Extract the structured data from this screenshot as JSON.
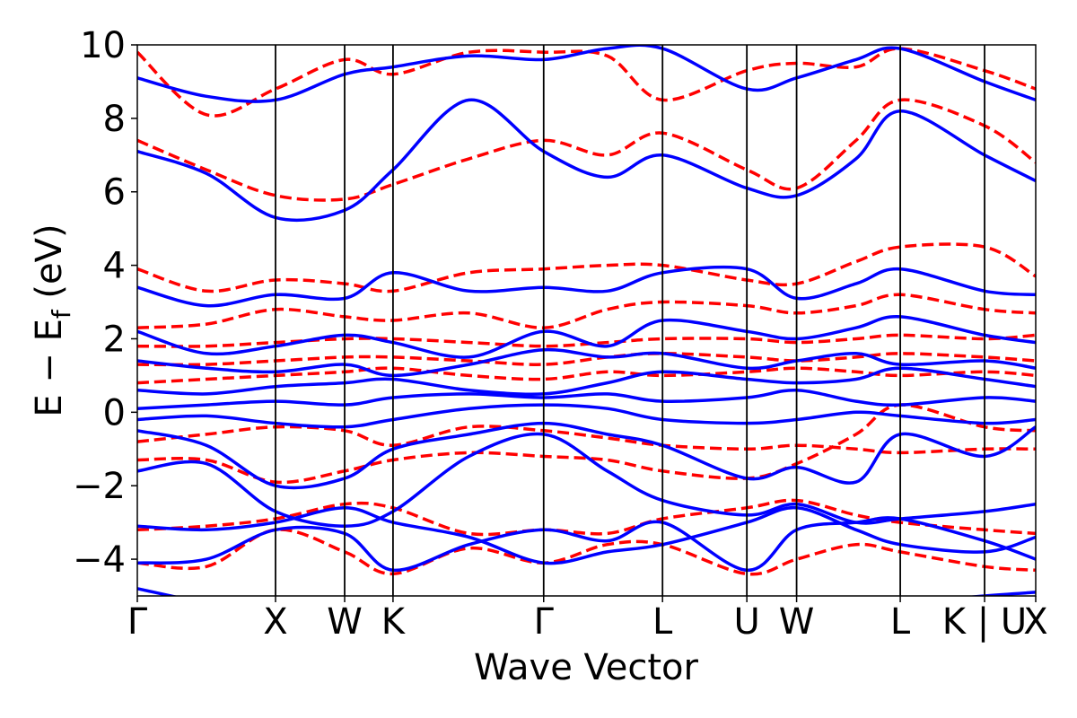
{
  "chart_data": {
    "type": "line",
    "title": "",
    "xlabel": "Wave Vector",
    "ylabel": "E − E_f (eV)",
    "ylim": [
      -5,
      10
    ],
    "xlim": [
      0,
      6.5
    ],
    "yticks": [
      10,
      8,
      6,
      4,
      2,
      0,
      -2,
      -4
    ],
    "ytick_labels": [
      "10",
      "8",
      "6",
      "4",
      "2",
      "0",
      "−2",
      "−4"
    ],
    "kpoints": [
      {
        "label": "Γ",
        "x": 0.0
      },
      {
        "label": "X",
        "x": 1.0
      },
      {
        "label": "W",
        "x": 1.5
      },
      {
        "label": "K",
        "x": 1.85
      },
      {
        "label": "Γ",
        "x": 2.94
      },
      {
        "label": "L",
        "x": 3.8
      },
      {
        "label": "U",
        "x": 4.41
      },
      {
        "label": "W",
        "x": 4.77
      },
      {
        "label": "L",
        "x": 5.52
      },
      {
        "label": "K | U",
        "x": 6.13
      },
      {
        "label": "X",
        "x": 6.5
      }
    ],
    "grid": false,
    "legend": "none",
    "colors": {
      "series_a": "#0000ff",
      "series_b": "#ff0000",
      "axes": "#000000"
    },
    "series": [
      {
        "style": "solid",
        "color": "#0000ff",
        "bands": [
          {
            "x": [
              0,
              0.5,
              1,
              1.5,
              1.85,
              2.4,
              2.94,
              3.4,
              3.8,
              4.41,
              4.77,
              5.2,
              5.52,
              6.13,
              6.5
            ],
            "y": [
              -4.8,
              -5.2,
              -5.5,
              -5.6,
              -5.4,
              -5.2,
              -5.1,
              -5.3,
              -5.4,
              -5.4,
              -5.3,
              -5.1,
              -5.2,
              -5.0,
              -4.9
            ]
          },
          {
            "x": [
              0,
              0.5,
              1,
              1.5,
              1.85,
              2.4,
              2.94,
              3.4,
              3.8,
              4.41,
              4.77,
              5.2,
              5.52,
              6.13,
              6.5
            ],
            "y": [
              -4.1,
              -4.0,
              -3.2,
              -3.3,
              -4.3,
              -3.6,
              -3.2,
              -3.5,
              -3.0,
              -4.3,
              -3.2,
              -3.0,
              -2.9,
              -3.5,
              -4.0
            ]
          },
          {
            "x": [
              0,
              0.5,
              1,
              1.5,
              1.85,
              2.4,
              2.94,
              3.4,
              3.8,
              4.41,
              4.77,
              5.2,
              5.52,
              6.13,
              6.5
            ],
            "y": [
              -3.1,
              -3.2,
              -3.0,
              -2.6,
              -3.0,
              -3.4,
              -4.1,
              -3.8,
              -3.6,
              -3.0,
              -2.6,
              -3.2,
              -3.6,
              -3.8,
              -3.4
            ]
          },
          {
            "x": [
              0,
              0.5,
              1,
              1.5,
              1.85,
              2.4,
              2.94,
              3.4,
              3.8,
              4.41,
              4.77,
              5.2,
              5.52,
              6.13,
              6.5
            ],
            "y": [
              -1.6,
              -1.4,
              -2.7,
              -3.1,
              -2.7,
              -1.2,
              -0.6,
              -1.6,
              -2.4,
              -2.8,
              -2.5,
              -3.0,
              -2.9,
              -2.7,
              -2.5
            ]
          },
          {
            "x": [
              0,
              0.5,
              1,
              1.5,
              1.85,
              2.4,
              2.94,
              3.4,
              3.8,
              4.41,
              4.77,
              5.2,
              5.52,
              6.13,
              6.5
            ],
            "y": [
              -0.5,
              -0.9,
              -2.0,
              -1.8,
              -1.0,
              -0.6,
              -0.3,
              -0.6,
              -0.9,
              -1.8,
              -1.5,
              -1.9,
              -0.6,
              -1.2,
              -0.4
            ]
          },
          {
            "x": [
              0,
              0.5,
              1,
              1.5,
              1.85,
              2.4,
              2.94,
              3.4,
              3.8,
              4.41,
              4.77,
              5.2,
              5.52,
              6.13,
              6.5
            ],
            "y": [
              -0.2,
              -0.1,
              -0.3,
              -0.4,
              -0.2,
              0.1,
              0.2,
              0.1,
              -0.2,
              -0.3,
              -0.2,
              0.0,
              -0.1,
              -0.3,
              -0.2
            ]
          },
          {
            "x": [
              0,
              0.5,
              1,
              1.5,
              1.85,
              2.4,
              2.94,
              3.4,
              3.8,
              4.41,
              4.77,
              5.2,
              5.52,
              6.13,
              6.5
            ],
            "y": [
              0.1,
              0.2,
              0.3,
              0.2,
              0.4,
              0.5,
              0.4,
              0.5,
              0.3,
              0.4,
              0.6,
              0.3,
              0.2,
              0.4,
              0.3
            ]
          },
          {
            "x": [
              0,
              0.5,
              1,
              1.5,
              1.85,
              2.4,
              2.94,
              3.4,
              3.8,
              4.41,
              4.77,
              5.2,
              5.52,
              6.13,
              6.5
            ],
            "y": [
              0.6,
              0.5,
              0.7,
              0.8,
              0.9,
              0.6,
              0.5,
              0.8,
              1.1,
              0.9,
              0.8,
              0.9,
              1.2,
              0.9,
              0.7
            ]
          },
          {
            "x": [
              0,
              0.5,
              1,
              1.5,
              1.85,
              2.4,
              2.94,
              3.4,
              3.8,
              4.41,
              4.77,
              5.2,
              5.52,
              6.13,
              6.5
            ],
            "y": [
              1.4,
              1.2,
              1.1,
              1.3,
              1.0,
              1.3,
              1.7,
              1.5,
              1.6,
              1.2,
              1.4,
              1.6,
              1.3,
              1.4,
              1.2
            ]
          },
          {
            "x": [
              0,
              0.5,
              1,
              1.5,
              1.85,
              2.4,
              2.94,
              3.4,
              3.8,
              4.41,
              4.77,
              5.2,
              5.52,
              6.13,
              6.5
            ],
            "y": [
              2.2,
              1.6,
              1.8,
              2.1,
              1.9,
              1.5,
              2.2,
              1.8,
              2.5,
              2.2,
              2.0,
              2.3,
              2.6,
              2.1,
              1.9
            ]
          },
          {
            "x": [
              0,
              0.5,
              1,
              1.5,
              1.85,
              2.4,
              2.94,
              3.4,
              3.8,
              4.41,
              4.77,
              5.2,
              5.52,
              6.13,
              6.5
            ],
            "y": [
              3.4,
              2.9,
              3.2,
              3.1,
              3.8,
              3.3,
              3.4,
              3.3,
              3.8,
              3.9,
              3.1,
              3.5,
              3.9,
              3.3,
              3.2
            ]
          },
          {
            "x": [
              0,
              0.5,
              1,
              1.5,
              1.85,
              2.4,
              2.94,
              3.4,
              3.8,
              4.41,
              4.77,
              5.2,
              5.52,
              6.13,
              6.5
            ],
            "y": [
              7.1,
              6.5,
              5.3,
              5.5,
              6.6,
              8.5,
              7.1,
              6.4,
              7.0,
              6.1,
              5.9,
              6.9,
              8.2,
              7.0,
              6.3
            ]
          },
          {
            "x": [
              0,
              0.5,
              1,
              1.5,
              1.85,
              2.4,
              2.94,
              3.4,
              3.8,
              4.41,
              4.77,
              5.2,
              5.52,
              6.13,
              6.5
            ],
            "y": [
              9.1,
              8.6,
              8.5,
              9.2,
              9.4,
              9.7,
              9.6,
              9.9,
              9.9,
              8.8,
              9.1,
              9.6,
              9.9,
              9.0,
              8.5
            ]
          }
        ]
      },
      {
        "style": "dashed",
        "color": "#ff0000",
        "bands": [
          {
            "x": [
              0,
              0.5,
              1,
              1.5,
              1.85,
              2.4,
              2.94,
              3.4,
              3.8,
              4.41,
              4.77,
              5.2,
              5.52,
              6.13,
              6.5
            ],
            "y": [
              -4.1,
              -4.2,
              -3.2,
              -3.8,
              -4.4,
              -3.7,
              -4.1,
              -3.6,
              -3.6,
              -4.4,
              -4.0,
              -3.6,
              -3.8,
              -4.2,
              -4.3
            ]
          },
          {
            "x": [
              0,
              0.5,
              1,
              1.5,
              1.85,
              2.4,
              2.94,
              3.4,
              3.8,
              4.41,
              4.77,
              5.2,
              5.52,
              6.13,
              6.5
            ],
            "y": [
              -3.2,
              -3.1,
              -2.9,
              -2.5,
              -2.6,
              -3.3,
              -3.2,
              -3.3,
              -2.9,
              -2.6,
              -2.4,
              -2.8,
              -3.0,
              -3.2,
              -3.3
            ]
          },
          {
            "x": [
              0,
              0.5,
              1,
              1.5,
              1.85,
              2.4,
              2.94,
              3.4,
              3.8,
              4.41,
              4.77,
              5.2,
              5.52,
              6.13,
              6.5
            ],
            "y": [
              -1.3,
              -1.3,
              -1.9,
              -1.6,
              -1.3,
              -1.1,
              -1.2,
              -1.3,
              -1.6,
              -1.8,
              -1.4,
              -0.6,
              0.2,
              -0.4,
              -0.5
            ]
          },
          {
            "x": [
              0,
              0.5,
              1,
              1.5,
              1.85,
              2.4,
              2.94,
              3.4,
              3.8,
              4.41,
              4.77,
              5.2,
              5.52,
              6.13,
              6.5
            ],
            "y": [
              -0.8,
              -0.6,
              -0.4,
              -0.5,
              -0.9,
              -0.4,
              -0.5,
              -0.7,
              -0.9,
              -1.0,
              -0.9,
              -1.0,
              -1.1,
              -1.0,
              -1.0
            ]
          },
          {
            "x": [
              0,
              0.5,
              1,
              1.5,
              1.85,
              2.4,
              2.94,
              3.4,
              3.8,
              4.41,
              4.77,
              5.2,
              5.52,
              6.13,
              6.5
            ],
            "y": [
              0.8,
              0.9,
              1.0,
              1.1,
              1.2,
              1.0,
              0.9,
              1.1,
              1.0,
              1.1,
              1.2,
              1.1,
              1.0,
              1.1,
              1.0
            ]
          },
          {
            "x": [
              0,
              0.5,
              1,
              1.5,
              1.85,
              2.4,
              2.94,
              3.4,
              3.8,
              4.41,
              4.77,
              5.2,
              5.52,
              6.13,
              6.5
            ],
            "y": [
              1.3,
              1.3,
              1.4,
              1.5,
              1.5,
              1.4,
              1.3,
              1.5,
              1.6,
              1.5,
              1.4,
              1.5,
              1.6,
              1.5,
              1.4
            ]
          },
          {
            "x": [
              0,
              0.5,
              1,
              1.5,
              1.85,
              2.4,
              2.94,
              3.4,
              3.8,
              4.41,
              4.77,
              5.2,
              5.52,
              6.13,
              6.5
            ],
            "y": [
              1.8,
              1.8,
              1.9,
              2.0,
              2.0,
              1.9,
              1.8,
              1.9,
              2.0,
              2.0,
              1.9,
              2.0,
              2.1,
              2.0,
              2.1
            ]
          },
          {
            "x": [
              0,
              0.5,
              1,
              1.5,
              1.85,
              2.4,
              2.94,
              3.4,
              3.8,
              4.41,
              4.77,
              5.2,
              5.52,
              6.13,
              6.5
            ],
            "y": [
              2.3,
              2.4,
              2.8,
              2.6,
              2.5,
              2.7,
              2.3,
              2.8,
              3.0,
              2.9,
              2.7,
              2.9,
              3.2,
              2.8,
              2.7
            ]
          },
          {
            "x": [
              0,
              0.5,
              1,
              1.5,
              1.85,
              2.4,
              2.94,
              3.4,
              3.8,
              4.41,
              4.77,
              5.2,
              5.52,
              6.13,
              6.5
            ],
            "y": [
              3.9,
              3.3,
              3.6,
              3.5,
              3.3,
              3.8,
              3.9,
              4.0,
              4.0,
              3.6,
              3.5,
              4.1,
              4.5,
              4.5,
              3.7
            ]
          },
          {
            "x": [
              0,
              0.5,
              1,
              1.5,
              1.85,
              2.4,
              2.94,
              3.4,
              3.8,
              4.41,
              4.77,
              5.2,
              5.52,
              6.13,
              6.5
            ],
            "y": [
              7.4,
              6.6,
              5.9,
              5.8,
              6.2,
              6.9,
              7.4,
              7.0,
              7.6,
              6.6,
              6.1,
              7.4,
              8.5,
              7.8,
              6.8
            ]
          },
          {
            "x": [
              0,
              0.5,
              1,
              1.5,
              1.85,
              2.4,
              2.94,
              3.4,
              3.8,
              4.41,
              4.77,
              5.2,
              5.52,
              6.13,
              6.5
            ],
            "y": [
              9.8,
              8.1,
              8.8,
              9.6,
              9.2,
              9.8,
              9.8,
              9.7,
              8.5,
              9.3,
              9.5,
              9.4,
              9.9,
              9.3,
              8.8
            ]
          }
        ]
      }
    ]
  }
}
